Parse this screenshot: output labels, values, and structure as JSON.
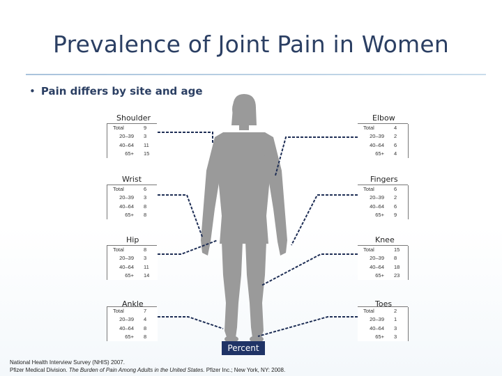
{
  "title": "Prevalence of Joint Pain in Women",
  "bullet": "Pain differs by site and age",
  "sites": {
    "shoulder": {
      "title": "Shoulder",
      "rows": [
        [
          "Total",
          "9"
        ],
        [
          "20–39",
          "3"
        ],
        [
          "40–64",
          "11"
        ],
        [
          "65+",
          "15"
        ]
      ]
    },
    "elbow": {
      "title": "Elbow",
      "rows": [
        [
          "Total",
          "4"
        ],
        [
          "20–39",
          "2"
        ],
        [
          "40–64",
          "6"
        ],
        [
          "65+",
          "4"
        ]
      ]
    },
    "wrist": {
      "title": "Wrist",
      "rows": [
        [
          "Total",
          "6"
        ],
        [
          "20–39",
          "3"
        ],
        [
          "40–64",
          "8"
        ],
        [
          "65+",
          "8"
        ]
      ]
    },
    "fingers": {
      "title": "Fingers",
      "rows": [
        [
          "Total",
          "6"
        ],
        [
          "20–39",
          "2"
        ],
        [
          "40–64",
          "6"
        ],
        [
          "65+",
          "9"
        ]
      ]
    },
    "hip": {
      "title": "Hip",
      "rows": [
        [
          "Total",
          "8"
        ],
        [
          "20–39",
          "3"
        ],
        [
          "40–64",
          "11"
        ],
        [
          "65+",
          "14"
        ]
      ]
    },
    "knee": {
      "title": "Knee",
      "rows": [
        [
          "Total",
          "15"
        ],
        [
          "20–39",
          "8"
        ],
        [
          "40–64",
          "18"
        ],
        [
          "65+",
          "23"
        ]
      ]
    },
    "ankle": {
      "title": "Ankle",
      "rows": [
        [
          "Total",
          "7"
        ],
        [
          "20–39",
          "4"
        ],
        [
          "40–64",
          "8"
        ],
        [
          "65+",
          "8"
        ]
      ]
    },
    "toes": {
      "title": "Toes",
      "rows": [
        [
          "Total",
          "2"
        ],
        [
          "20–39",
          "1"
        ],
        [
          "40–64",
          "3"
        ],
        [
          "65+",
          "3"
        ]
      ]
    }
  },
  "percent_label": "Percent",
  "footer": {
    "line1": "National Health Interview Survey (NHIS) 2007.",
    "line2_pre": "Pfizer Medical Division. ",
    "line2_italic": "The Burden of Pain Among Adults in the United States.",
    "line2_post": " Pfizer Inc.; New York, NY: 2008."
  },
  "colors": {
    "title": "#2b3f63",
    "figure": "#9a9a9a",
    "connector": "#1e2e55",
    "percent_bg": "#1f3366"
  }
}
